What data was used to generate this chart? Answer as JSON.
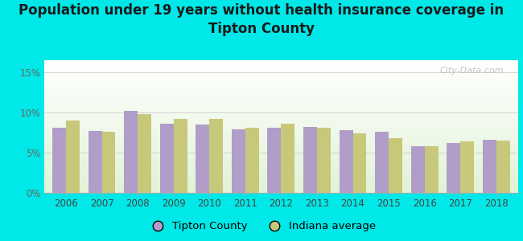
{
  "title": "Population under 19 years without health insurance coverage in\nTipton County",
  "years": [
    2006,
    2007,
    2008,
    2009,
    2010,
    2011,
    2012,
    2013,
    2014,
    2015,
    2016,
    2017,
    2018
  ],
  "tipton_values": [
    8.1,
    7.7,
    10.2,
    8.6,
    8.5,
    7.9,
    8.1,
    8.2,
    7.8,
    7.6,
    5.8,
    6.2,
    6.6
  ],
  "indiana_values": [
    9.0,
    7.6,
    9.8,
    9.2,
    9.2,
    8.1,
    8.6,
    8.1,
    7.4,
    6.8,
    5.8,
    6.4,
    6.5
  ],
  "tipton_color": "#b09ec9",
  "indiana_color": "#c8c87a",
  "background_outer": "#00e8e8",
  "ylim": [
    0,
    16.5
  ],
  "yticks": [
    0,
    5,
    10,
    15
  ],
  "ytick_labels": [
    "0%",
    "5%",
    "10%",
    "15%"
  ],
  "bar_width": 0.38,
  "legend_tipton": "Tipton County",
  "legend_indiana": "Indiana average",
  "title_fontsize": 12,
  "tick_fontsize": 8.5,
  "legend_fontsize": 9.5,
  "watermark": "City-Data.com"
}
